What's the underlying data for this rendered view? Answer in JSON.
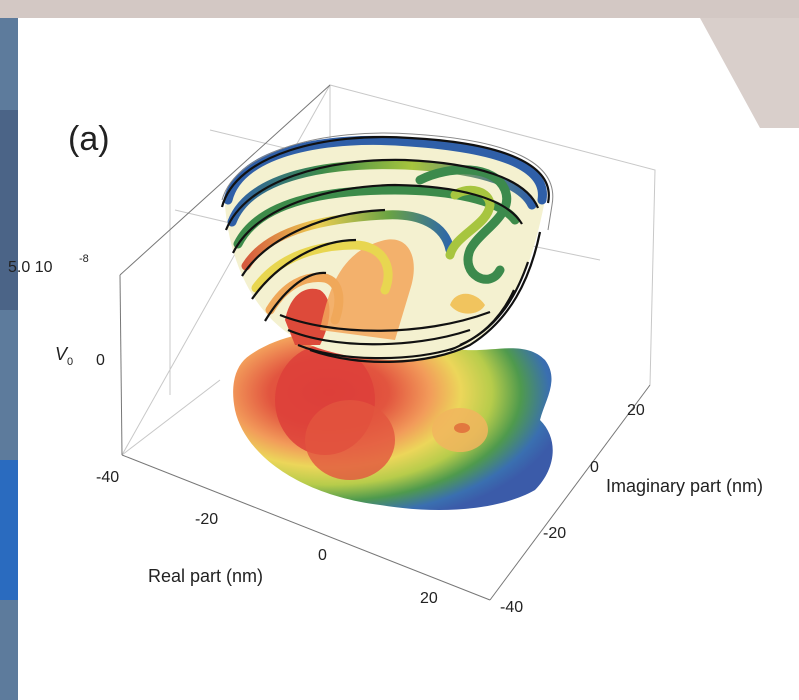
{
  "panel_label": "(a)",
  "chart_data": {
    "type": "surface3d",
    "title": "",
    "xlabel": "Real part (nm)",
    "ylabel": "Imaginary part (nm)",
    "zlabel": "V",
    "zlabel_sub": "0",
    "x_ticks": [
      "-40",
      "-20",
      "0",
      "20"
    ],
    "y_ticks": [
      "-40",
      "-20",
      "0",
      "20"
    ],
    "z_tick_labels": {
      "upper_mantissa": "5.0 10",
      "upper_exponent": "-8",
      "lower": "0"
    },
    "x_range": [
      -40,
      30
    ],
    "y_range": [
      -40,
      30
    ],
    "z_range": [
      0,
      5e-08
    ],
    "description_colors": [
      "#3b5ba9",
      "#2f7d4a",
      "#8fb63a",
      "#e6df55",
      "#f2a65a",
      "#dd4a3a"
    ],
    "surface": "contour rings of a bowl-shaped potential surface with a projected filled contour map on the base plane"
  }
}
